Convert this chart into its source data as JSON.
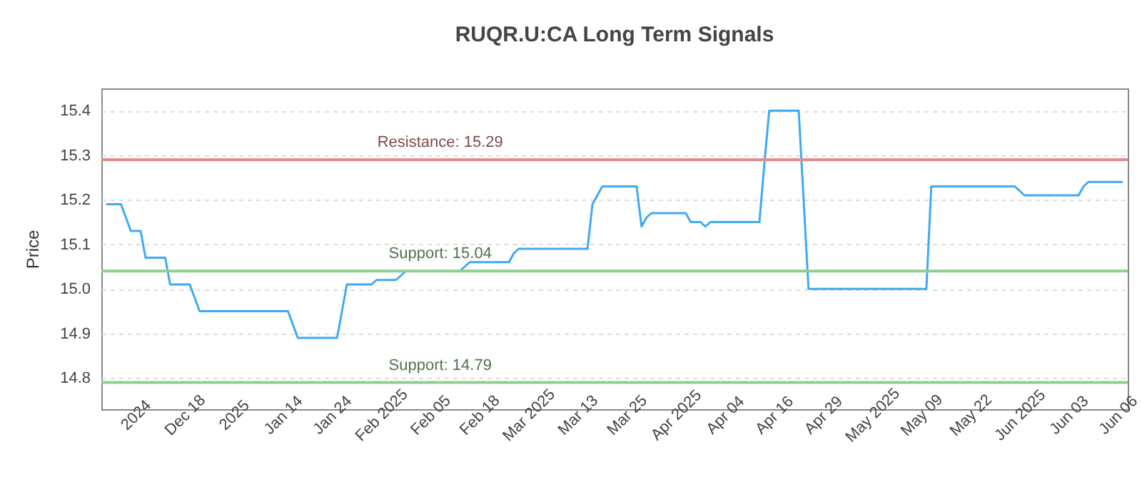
{
  "chart_data": {
    "type": "line",
    "title": "RUQR.U:CA Long Term Signals",
    "ylabel": "Price",
    "categories": [
      null,
      null,
      null,
      null,
      null,
      null,
      "2024",
      null,
      null,
      null,
      null,
      null,
      null,
      null,
      null,
      null,
      "Dec 18",
      null,
      null,
      null,
      null,
      null,
      null,
      null,
      null,
      null,
      "2025",
      null,
      null,
      null,
      null,
      null,
      null,
      null,
      null,
      null,
      "Jan 14",
      null,
      null,
      null,
      null,
      null,
      null,
      null,
      null,
      null,
      "Jan 24",
      null,
      null,
      null,
      null,
      null,
      null,
      null,
      null,
      null,
      "Feb 2025",
      null,
      null,
      null,
      null,
      null,
      null,
      null,
      null,
      null,
      "Feb 05",
      null,
      null,
      null,
      null,
      null,
      null,
      null,
      null,
      null,
      "Feb 18",
      null,
      null,
      null,
      null,
      null,
      null,
      null,
      null,
      null,
      "Mar 2025",
      null,
      null,
      null,
      null,
      null,
      null,
      null,
      null,
      null,
      "Mar 13",
      null,
      null,
      null,
      null,
      null,
      null,
      null,
      null,
      null,
      "Mar 25",
      null,
      null,
      null,
      null,
      null,
      null,
      null,
      null,
      null,
      "Apr 2025",
      null,
      null,
      null,
      null,
      null,
      null,
      null,
      null,
      null,
      "Apr 04",
      null,
      null,
      null,
      null,
      null,
      null,
      null,
      null,
      null,
      "Apr 16",
      null,
      null,
      null,
      null,
      null,
      null,
      null,
      null,
      null,
      "Apr 29",
      null,
      null,
      null,
      null,
      null,
      null,
      null,
      null,
      null,
      "May 2025",
      null,
      null,
      null,
      null,
      null,
      null,
      null,
      null,
      null,
      "May 09",
      null,
      null,
      null,
      null,
      null,
      null,
      null,
      null,
      null,
      "May 22",
      null,
      null,
      null,
      null,
      null,
      null,
      null,
      null,
      null,
      "Jun 2025",
      null,
      null,
      null,
      null,
      null,
      null,
      null,
      null,
      null,
      "Jun 03",
      null,
      null,
      null,
      null,
      null,
      null,
      null,
      null,
      null,
      "Jun 06",
      null
    ],
    "series": [
      {
        "color": "#3fa9f5",
        "values": [
          15.19,
          15.19,
          15.19,
          15.19,
          15.16,
          15.13,
          15.13,
          15.13,
          15.07,
          15.07,
          15.07,
          15.07,
          15.07,
          15.01,
          15.01,
          15.01,
          15.01,
          15.01,
          14.98,
          14.95,
          14.95,
          14.95,
          14.95,
          14.95,
          14.95,
          14.95,
          14.95,
          14.95,
          14.95,
          14.95,
          14.95,
          14.95,
          14.95,
          14.95,
          14.95,
          14.95,
          14.95,
          14.95,
          14.92,
          14.89,
          14.89,
          14.89,
          14.89,
          14.89,
          14.89,
          14.89,
          14.89,
          14.89,
          14.95,
          15.01,
          15.01,
          15.01,
          15.01,
          15.01,
          15.01,
          15.02,
          15.02,
          15.02,
          15.02,
          15.02,
          15.03,
          15.04,
          15.04,
          15.04,
          15.04,
          15.04,
          15.04,
          15.04,
          15.04,
          15.04,
          15.04,
          15.04,
          15.04,
          15.05,
          15.06,
          15.06,
          15.06,
          15.06,
          15.06,
          15.06,
          15.06,
          15.06,
          15.06,
          15.08,
          15.09,
          15.09,
          15.09,
          15.09,
          15.09,
          15.09,
          15.09,
          15.09,
          15.09,
          15.09,
          15.09,
          15.09,
          15.09,
          15.09,
          15.09,
          15.19,
          15.21,
          15.23,
          15.23,
          15.23,
          15.23,
          15.23,
          15.23,
          15.23,
          15.23,
          15.14,
          15.16,
          15.17,
          15.17,
          15.17,
          15.17,
          15.17,
          15.17,
          15.17,
          15.17,
          15.15,
          15.15,
          15.15,
          15.14,
          15.15,
          15.15,
          15.15,
          15.15,
          15.15,
          15.15,
          15.15,
          15.15,
          15.15,
          15.15,
          15.15,
          15.28,
          15.4,
          15.4,
          15.4,
          15.4,
          15.4,
          15.4,
          15.4,
          15.2,
          15.0,
          15.0,
          15.0,
          15.0,
          15.0,
          15.0,
          15.0,
          15.0,
          15.0,
          15.0,
          15.0,
          15.0,
          15.0,
          15.0,
          15.0,
          15.0,
          15.0,
          15.0,
          15.0,
          15.0,
          15.0,
          15.0,
          15.0,
          15.0,
          15.0,
          15.23,
          15.23,
          15.23,
          15.23,
          15.23,
          15.23,
          15.23,
          15.23,
          15.23,
          15.23,
          15.23,
          15.23,
          15.23,
          15.23,
          15.23,
          15.23,
          15.23,
          15.23,
          15.22,
          15.21,
          15.21,
          15.21,
          15.21,
          15.21,
          15.21,
          15.21,
          15.21,
          15.21,
          15.21,
          15.21,
          15.21,
          15.23,
          15.24,
          15.24,
          15.24,
          15.24,
          15.24,
          15.24,
          15.24,
          15.24
        ]
      }
    ],
    "ylim": [
      14.73,
      15.45
    ],
    "yticks": [
      14.8,
      14.9,
      {
        "value": 15,
        "label": "15.0"
      },
      15.1,
      15.2,
      15.3,
      15.4
    ],
    "grid": "y",
    "ref_lines": [
      {
        "axis": "y",
        "value": 15.29,
        "label": "Resistance: 15.29",
        "color": "#e38b8b"
      },
      {
        "axis": "y",
        "value": 15.04,
        "label": "Support: 15.04",
        "color": "#8fcf8f"
      },
      {
        "axis": "y",
        "value": 14.79,
        "label": "Support: 14.79",
        "color": "#8fcf8f"
      }
    ]
  }
}
